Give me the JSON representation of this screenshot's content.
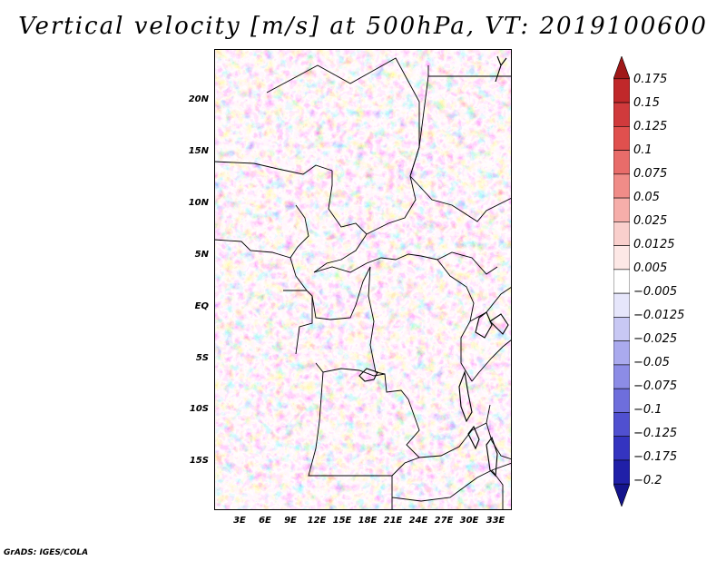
{
  "title": "Vertical velocity [m/s] at 500hPa, VT: 2019100600",
  "credit": "GrADS: IGES/COLA",
  "map": {
    "lat_ticks": [
      "20N",
      "15N",
      "10N",
      "5N",
      "EQ",
      "5S",
      "10S",
      "15S"
    ],
    "lon_ticks": [
      "3E",
      "6E",
      "9E",
      "12E",
      "15E",
      "18E",
      "21E",
      "24E",
      "27E",
      "30E",
      "33E"
    ],
    "border_color": "#000000"
  },
  "colorbar": {
    "levels": [
      "0.175",
      "0.15",
      "0.125",
      "0.1",
      "0.075",
      "0.05",
      "0.025",
      "0.0125",
      "0.005",
      "−0.005",
      "−0.0125",
      "−0.025",
      "−0.05",
      "−0.075",
      "−0.1",
      "−0.125",
      "−0.175",
      "−0.2"
    ],
    "colors": [
      "#a01818",
      "#c0282a",
      "#d03a3c",
      "#e0504e",
      "#e86c6a",
      "#f08c88",
      "#f6aeaa",
      "#f9cfcc",
      "#fde8e6",
      "#ffffff",
      "#e6e6fb",
      "#c8c8f4",
      "#aaaaee",
      "#8c8ce6",
      "#6e6edc",
      "#5050d0",
      "#3434c0",
      "#2020a8",
      "#14148c"
    ]
  }
}
